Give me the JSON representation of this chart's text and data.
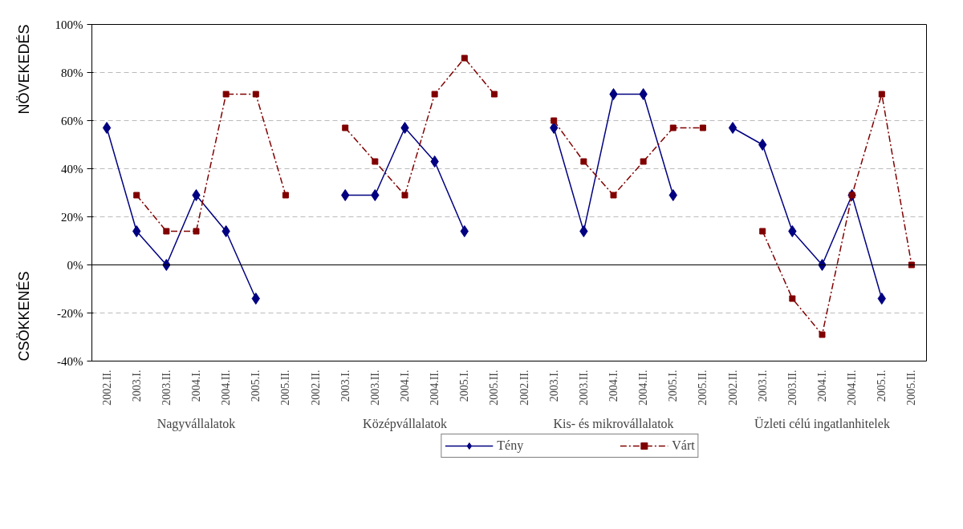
{
  "chart_data": {
    "type": "line",
    "categories": [
      "2002.II.",
      "2003.I.",
      "2003.II.",
      "2004.I.",
      "2004.II.",
      "2005.I.",
      "2005.II.",
      "2002.II.",
      "2003.I.",
      "2003.II.",
      "2004.I.",
      "2004.II.",
      "2005.I.",
      "2005.II.",
      "2002.II.",
      "2003.I.",
      "2003.II.",
      "2004.I.",
      "2004.II.",
      "2005.I.",
      "2005.II.",
      "2002.II.",
      "2003.I.",
      "2003.II.",
      "2004.I.",
      "2004.II.",
      "2005.I.",
      "2005.II."
    ],
    "series": [
      {
        "name": "Tény",
        "color": "#000080",
        "marker": "diamond",
        "line_style": "solid",
        "values": [
          57,
          14,
          0,
          29,
          14,
          -14,
          null,
          null,
          29,
          29,
          57,
          43,
          14,
          null,
          null,
          57,
          14,
          71,
          71,
          29,
          null,
          57,
          50,
          14,
          0,
          29,
          -14,
          null
        ]
      },
      {
        "name": "Várt",
        "color": "#800000",
        "marker": "square",
        "line_style": "dashdot",
        "values": [
          null,
          29,
          14,
          14,
          71,
          71,
          29,
          null,
          57,
          43,
          29,
          71,
          86,
          71,
          null,
          60,
          43,
          29,
          43,
          57,
          57,
          null,
          14,
          -14,
          -29,
          29,
          71,
          0
        ]
      }
    ],
    "ylim": [
      -40,
      100
    ],
    "yticks": [
      {
        "value": -40,
        "label": "-40%"
      },
      {
        "value": -20,
        "label": "-20%"
      },
      {
        "value": 0,
        "label": "0%"
      },
      {
        "value": 20,
        "label": "20%"
      },
      {
        "value": 40,
        "label": "40%"
      },
      {
        "value": 60,
        "label": "60%"
      },
      {
        "value": 80,
        "label": "80%"
      },
      {
        "value": 100,
        "label": "100%"
      }
    ],
    "annotations": [
      "NÖVEKEDÉS",
      "CSÖKKENÉS",
      "Nagyvállalatok",
      "Középvállalatok",
      "Kis- és mikrovállalatok",
      "Üzleti célú ingatlanhitelek"
    ],
    "grid": "y",
    "legend": "bottom"
  }
}
